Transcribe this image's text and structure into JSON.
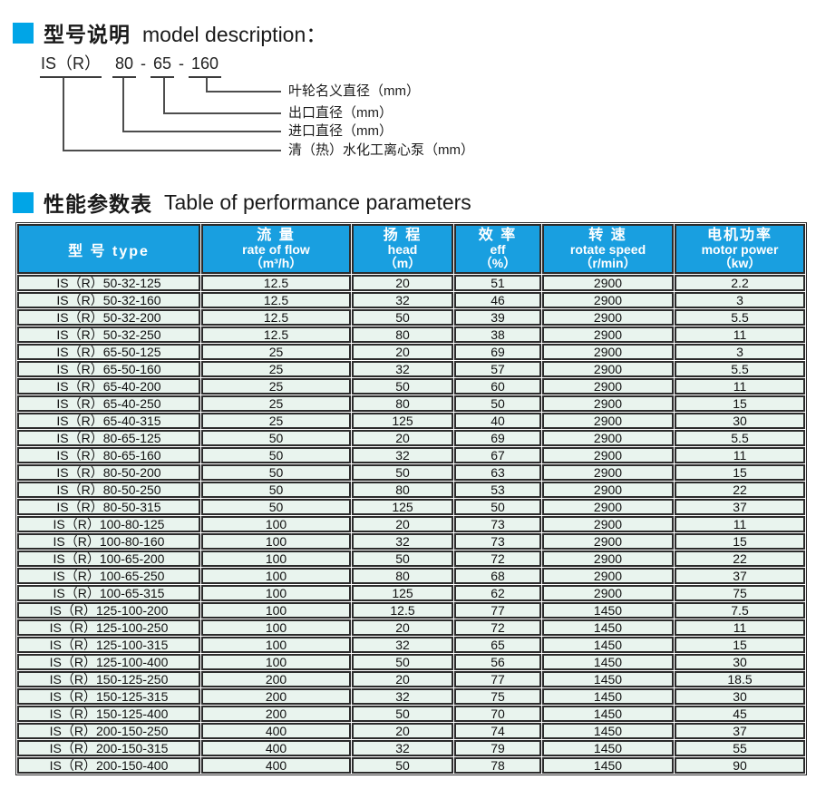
{
  "colors": {
    "accent_blue": "#00a5e7",
    "table_header_blue": "#199fe0",
    "row_background": "#e9f4ee",
    "border": "#2b2b2b"
  },
  "section1": {
    "title_zh": "型号说明",
    "title_en": "model description："
  },
  "diagram": {
    "model_prefix": "IS（R）",
    "inlet": "80",
    "dash1": "-",
    "outlet": "65",
    "dash2": "-",
    "impeller": "160",
    "labels": {
      "impeller_diameter": "叶轮名义直径（mm）",
      "outlet_diameter": "出口直径（mm）",
      "inlet_diameter": "进口直径（mm）",
      "pump_type": "清（热）水化工离心泵（mm）"
    }
  },
  "section2": {
    "title_zh": "性能参数表",
    "title_en": "Table of performance parameters"
  },
  "table": {
    "columns": [
      {
        "key": "model",
        "zh": "型 号 type",
        "en": "",
        "unit": ""
      },
      {
        "key": "flow",
        "zh": "流 量",
        "en": "rate of flow",
        "unit": "（m³/h）"
      },
      {
        "key": "head",
        "zh": "扬 程",
        "en": "head",
        "unit": "（m）"
      },
      {
        "key": "eff",
        "zh": "效 率",
        "en": "eff",
        "unit": "（%）"
      },
      {
        "key": "speed",
        "zh": "转 速",
        "en": "rotate speed",
        "unit": "（r/min）"
      },
      {
        "key": "power",
        "zh": "电机功率",
        "en": "motor power",
        "unit": "（kw）"
      }
    ],
    "rows": [
      [
        "IS（R）50-32-125",
        "12.5",
        "20",
        "51",
        "2900",
        "2.2"
      ],
      [
        "IS（R）50-32-160",
        "12.5",
        "32",
        "46",
        "2900",
        "3"
      ],
      [
        "IS（R）50-32-200",
        "12.5",
        "50",
        "39",
        "2900",
        "5.5"
      ],
      [
        "IS（R）50-32-250",
        "12.5",
        "80",
        "38",
        "2900",
        "11"
      ],
      [
        "IS（R）65-50-125",
        "25",
        "20",
        "69",
        "2900",
        "3"
      ],
      [
        "IS（R）65-50-160",
        "25",
        "32",
        "57",
        "2900",
        "5.5"
      ],
      [
        "IS（R）65-40-200",
        "25",
        "50",
        "60",
        "2900",
        "11"
      ],
      [
        "IS（R）65-40-250",
        "25",
        "80",
        "50",
        "2900",
        "15"
      ],
      [
        "IS（R）65-40-315",
        "25",
        "125",
        "40",
        "2900",
        "30"
      ],
      [
        "IS（R）80-65-125",
        "50",
        "20",
        "69",
        "2900",
        "5.5"
      ],
      [
        "IS（R）80-65-160",
        "50",
        "32",
        "67",
        "2900",
        "11"
      ],
      [
        "IS（R）80-50-200",
        "50",
        "50",
        "63",
        "2900",
        "15"
      ],
      [
        "IS（R）80-50-250",
        "50",
        "80",
        "53",
        "2900",
        "22"
      ],
      [
        "IS（R）80-50-315",
        "50",
        "125",
        "50",
        "2900",
        "37"
      ],
      [
        "IS（R）100-80-125",
        "100",
        "20",
        "73",
        "2900",
        "11"
      ],
      [
        "IS（R）100-80-160",
        "100",
        "32",
        "73",
        "2900",
        "15"
      ],
      [
        "IS（R）100-65-200",
        "100",
        "50",
        "72",
        "2900",
        "22"
      ],
      [
        "IS（R）100-65-250",
        "100",
        "80",
        "68",
        "2900",
        "37"
      ],
      [
        "IS（R）100-65-315",
        "100",
        "125",
        "62",
        "2900",
        "75"
      ],
      [
        "IS（R）125-100-200",
        "100",
        "12.5",
        "77",
        "1450",
        "7.5"
      ],
      [
        "IS（R）125-100-250",
        "100",
        "20",
        "72",
        "1450",
        "11"
      ],
      [
        "IS（R）125-100-315",
        "100",
        "32",
        "65",
        "1450",
        "15"
      ],
      [
        "IS（R）125-100-400",
        "100",
        "50",
        "56",
        "1450",
        "30"
      ],
      [
        "IS（R）150-125-250",
        "200",
        "20",
        "77",
        "1450",
        "18.5"
      ],
      [
        "IS（R）150-125-315",
        "200",
        "32",
        "75",
        "1450",
        "30"
      ],
      [
        "IS（R）150-125-400",
        "200",
        "50",
        "70",
        "1450",
        "45"
      ],
      [
        "IS（R）200-150-250",
        "400",
        "20",
        "74",
        "1450",
        "37"
      ],
      [
        "IS（R）200-150-315",
        "400",
        "32",
        "79",
        "1450",
        "55"
      ],
      [
        "IS（R）200-150-400",
        "400",
        "50",
        "78",
        "1450",
        "90"
      ]
    ]
  }
}
